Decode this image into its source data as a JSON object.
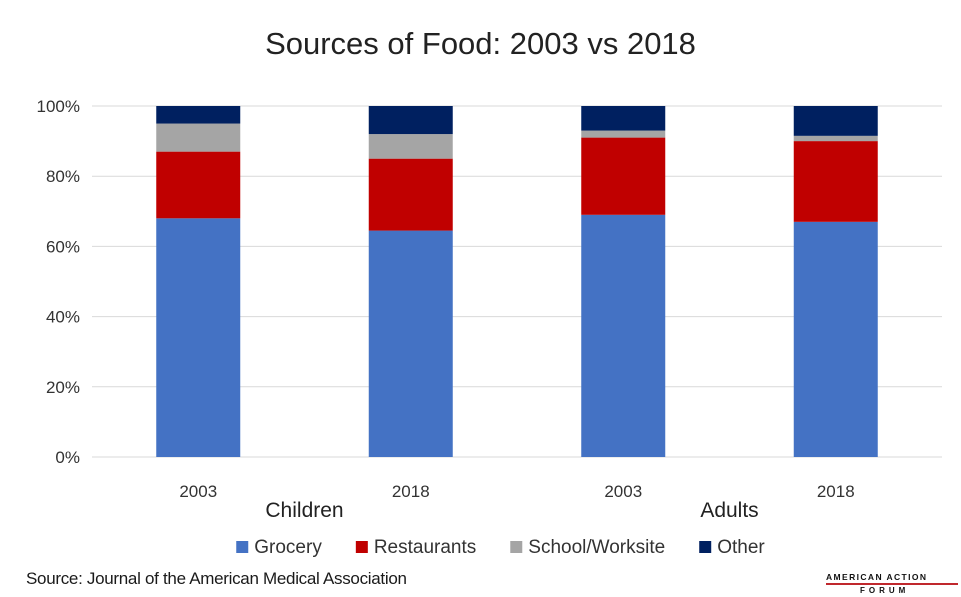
{
  "chart_data": {
    "type": "bar",
    "stacked": true,
    "title": "Sources of Food: 2003 vs 2018",
    "groups": [
      {
        "label": "Children",
        "categories": [
          "2003",
          "2018"
        ]
      },
      {
        "label": "Adults",
        "categories": [
          "2003",
          "2018"
        ]
      }
    ],
    "categories": [
      "2003",
      "2018",
      "2003",
      "2018"
    ],
    "series": [
      {
        "name": "Grocery",
        "color": "#4472c4",
        "values": [
          68,
          64.5,
          69,
          67
        ]
      },
      {
        "name": "Restaurants",
        "color": "#c00000",
        "values": [
          19,
          20.5,
          22,
          23
        ]
      },
      {
        "name": "School/Worksite",
        "color": "#a5a5a5",
        "values": [
          8,
          7,
          2,
          1.5
        ]
      },
      {
        "name": "Other",
        "color": "#002060",
        "values": [
          5,
          8,
          7,
          8.5
        ]
      }
    ],
    "yticks": [
      "0%",
      "20%",
      "40%",
      "60%",
      "80%",
      "100%"
    ],
    "ylim": [
      0,
      100
    ],
    "grid": true,
    "legend": "bottom"
  },
  "footer": {
    "source": "Source: Journal of the American Medical Association",
    "logo_line1": "AMERICAN ACTION",
    "logo_line2": "FORUM"
  }
}
